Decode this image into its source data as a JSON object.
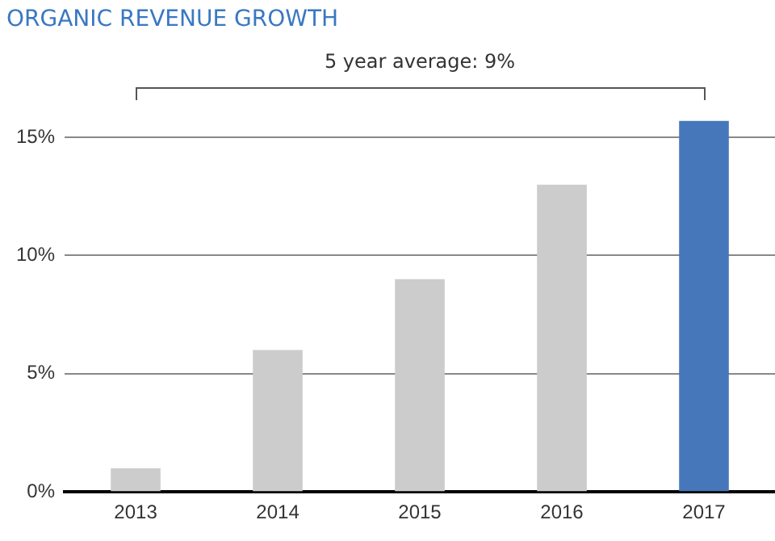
{
  "chart_data": {
    "type": "bar",
    "title": "ORGANIC REVENUE GROWTH",
    "categories": [
      "2013",
      "2014",
      "2015",
      "2016",
      "2017"
    ],
    "values": [
      1,
      6,
      9,
      13,
      15.7
    ],
    "colors": [
      "#cccccc",
      "#cccccc",
      "#cccccc",
      "#cccccc",
      "#4677bb"
    ],
    "yticks": [
      {
        "value": 0,
        "label": "0%"
      },
      {
        "value": 5,
        "label": "5%"
      },
      {
        "value": 10,
        "label": "10%"
      },
      {
        "value": 15,
        "label": "15%"
      }
    ],
    "ylim": [
      0,
      15.7
    ],
    "grid": "y",
    "legend": false,
    "annotations": [
      "5 year average: 9%"
    ]
  }
}
